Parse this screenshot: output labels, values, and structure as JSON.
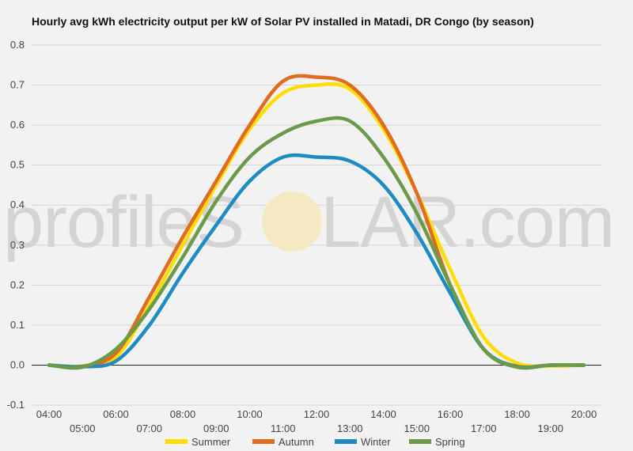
{
  "chart_data": {
    "type": "line",
    "title": "Hourly avg kWh electricity output per kW of Solar PV installed in Matadi, DR Congo (by season)",
    "xlabel": "",
    "ylabel": "",
    "ylim": [
      -0.1,
      0.8
    ],
    "yticks": [
      "-0.1",
      "0.0",
      "0.1",
      "0.2",
      "0.3",
      "0.4",
      "0.5",
      "0.6",
      "0.7",
      "0.8"
    ],
    "xticks_top": [
      "04:00",
      "06:00",
      "08:00",
      "10:00",
      "12:00",
      "14:00",
      "16:00",
      "18:00",
      "20:00"
    ],
    "xticks_bottom": [
      "05:00",
      "07:00",
      "09:00",
      "11:00",
      "13:00",
      "15:00",
      "17:00",
      "19:00"
    ],
    "grid": true,
    "legend_position": "bottom",
    "x": [
      "04:00",
      "05:00",
      "06:00",
      "07:00",
      "08:00",
      "09:00",
      "10:00",
      "11:00",
      "12:00",
      "13:00",
      "14:00",
      "15:00",
      "16:00",
      "17:00",
      "18:00",
      "19:00",
      "20:00"
    ],
    "series": [
      {
        "name": "Summer",
        "color": "#ffdd00",
        "values": [
          0.0,
          -0.002,
          0.02,
          0.15,
          0.3,
          0.45,
          0.59,
          0.68,
          0.7,
          0.69,
          0.59,
          0.43,
          0.24,
          0.07,
          0.005,
          -0.002,
          0.0
        ]
      },
      {
        "name": "Autumn",
        "color": "#e06c22",
        "values": [
          0.0,
          -0.003,
          0.03,
          0.17,
          0.32,
          0.46,
          0.6,
          0.71,
          0.72,
          0.7,
          0.6,
          0.43,
          0.2,
          0.04,
          -0.003,
          0.0,
          0.0
        ]
      },
      {
        "name": "Winter",
        "color": "#1e8bc3",
        "values": [
          0.0,
          -0.004,
          0.01,
          0.1,
          0.23,
          0.35,
          0.46,
          0.52,
          0.52,
          0.51,
          0.45,
          0.33,
          0.18,
          0.04,
          -0.004,
          0.0,
          0.0
        ]
      },
      {
        "name": "Spring",
        "color": "#6a9a4a",
        "values": [
          0.0,
          -0.005,
          0.04,
          0.14,
          0.27,
          0.41,
          0.52,
          0.58,
          0.61,
          0.61,
          0.52,
          0.38,
          0.2,
          0.04,
          -0.005,
          0.0,
          0.0
        ]
      }
    ]
  },
  "watermark": {
    "left": "profileS",
    "right": "LAR.com"
  }
}
